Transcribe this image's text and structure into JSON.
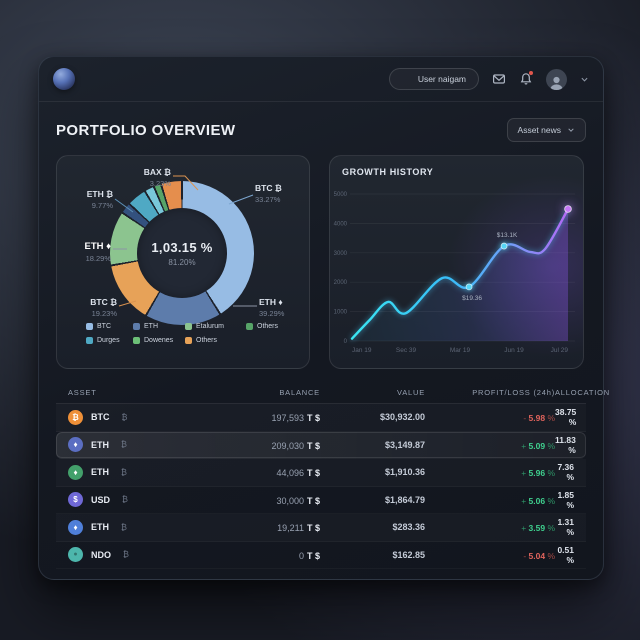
{
  "topbar": {
    "user_button_label": "User naigam"
  },
  "header": {
    "title": "PORTFOLIO OVERVIEW",
    "asset_news_button": "Asset news"
  },
  "allocation_card": {
    "center_value": "1,03.15 %",
    "center_subvalue": "81.20%",
    "callouts": [
      {
        "name": "BAX ₿",
        "pct": "3.23%"
      },
      {
        "name": "ETH ₿",
        "pct": "9.77%"
      },
      {
        "name": "ETH ♦",
        "pct": "18.29%"
      },
      {
        "name": "BTC ₿",
        "pct": "19.23%"
      },
      {
        "name": "BTC ₿",
        "pct": "33.27%"
      },
      {
        "name": "ETH ♦",
        "pct": "39.29%"
      }
    ],
    "legend": [
      {
        "label": "BTC",
        "color": "#97bce4"
      },
      {
        "label": "ETH",
        "color": "#5d7cab"
      },
      {
        "label": "Etalurum",
        "color": "#8cc48f"
      },
      {
        "label": "Others",
        "color": "#57a468"
      },
      {
        "label": "Durges",
        "color": "#4fa9c4"
      },
      {
        "label": "Dowenes",
        "color": "#6cbf77"
      },
      {
        "label": "Others",
        "color": "#e7a258"
      }
    ],
    "chart_data": {
      "type": "pie",
      "segments": [
        {
          "label": "BTC",
          "pct": 33.27,
          "color": "#97bce4",
          "deg": 148
        },
        {
          "label": "ETH",
          "pct": 39.29,
          "color": "#5d7cab",
          "deg": 62
        },
        {
          "label": "BTC",
          "pct": 19.23,
          "color": "#e7a258",
          "deg": 50
        },
        {
          "label": "ETH",
          "pct": 18.29,
          "color": "#8cc48f",
          "deg": 44
        },
        {
          "label": "ETH",
          "pct": null,
          "color": "#33517e",
          "deg": 9
        },
        {
          "label": "ETH",
          "pct": 9.77,
          "color": "#4fa9c4",
          "deg": 16
        },
        {
          "label": "Durges",
          "pct": null,
          "color": "#79c7da",
          "deg": 8
        },
        {
          "label": "Others",
          "pct": null,
          "color": "#57a468",
          "deg": 6
        },
        {
          "label": "BAX",
          "pct": 3.23,
          "color": "#e58e4d",
          "deg": 17
        }
      ]
    }
  },
  "growth_card": {
    "title": "GROWTH HISTORY",
    "chart_data": {
      "type": "line",
      "x_labels": [
        "Jan 19",
        "Sec 39",
        "Mar 19",
        "Jun 19",
        "Jul 29"
      ],
      "y_ticks": [
        0,
        1000,
        2000,
        3000,
        4000,
        5000
      ],
      "ylim": [
        0,
        5000
      ],
      "points": [
        {
          "f": 0.0,
          "v": 80
        },
        {
          "f": 0.08,
          "v": 700
        },
        {
          "f": 0.167,
          "v": 1330
        },
        {
          "f": 0.25,
          "v": 950
        },
        {
          "f": 0.417,
          "v": 2140
        },
        {
          "f": 0.542,
          "v": 1840,
          "marker": true,
          "label": "$19.36",
          "label_pos": "below"
        },
        {
          "f": 0.704,
          "v": 3230,
          "marker": true,
          "label": "$13.1K",
          "label_pos": "above"
        },
        {
          "f": 0.824,
          "v": 3030
        },
        {
          "f": 0.894,
          "v": 3130
        },
        {
          "f": 1.0,
          "v": 4490,
          "end": true
        }
      ]
    }
  },
  "table": {
    "headers": [
      "ASSET",
      "BALANCE",
      "VALUE",
      "PROFIT/LOSS (24h)",
      "ALLOCATION"
    ],
    "rows": [
      {
        "asset": "BTC",
        "suffix": "₿",
        "icon_color": "#ef9038",
        "icon_glyph": "₿",
        "balance": "197,593",
        "balance_suffix": "T $",
        "value": "$30,932.00",
        "profit_sign": "-",
        "profit_value": "5.98",
        "profit_dir": "down",
        "allocation": "38.75 %"
      },
      {
        "asset": "ETH",
        "suffix": "₿",
        "icon_color": "#5b6ec2",
        "icon_glyph": "♦",
        "balance": "209,030",
        "balance_suffix": "T $",
        "value": "$3,149.87",
        "profit_sign": "+",
        "profit_value": "5.09",
        "profit_dir": "up",
        "allocation": "11.83 %",
        "highlight": true
      },
      {
        "asset": "ETH",
        "suffix": "₿",
        "icon_color": "#43a06b",
        "icon_glyph": "♦",
        "balance": "44,096",
        "balance_suffix": "T $",
        "value": "$1,910.36",
        "profit_sign": "+",
        "profit_value": "5.96",
        "profit_dir": "up",
        "allocation": "7.36 %"
      },
      {
        "asset": "USD",
        "suffix": "₿",
        "icon_color": "#6f68d6",
        "icon_glyph": "$",
        "balance": "30,000",
        "balance_suffix": "T $",
        "value": "$1,864.79",
        "profit_sign": "+",
        "profit_value": "5.06",
        "profit_dir": "up",
        "allocation": "1.85 %"
      },
      {
        "asset": "ETH",
        "suffix": "₿",
        "icon_color": "#4f7fd9",
        "icon_glyph": "♦",
        "balance": "19,211",
        "balance_suffix": "T $",
        "value": "$283.36",
        "profit_sign": "+",
        "profit_value": "3.59",
        "profit_dir": "up",
        "allocation": "1.31 %"
      },
      {
        "asset": "NDO",
        "suffix": "₿",
        "icon_color": "#4db6ac",
        "icon_glyph": "●",
        "balance": "0",
        "balance_suffix": "T $",
        "value": "$162.85",
        "profit_sign": "-",
        "profit_value": "5.04",
        "profit_dir": "down",
        "allocation": "0.51 %"
      }
    ]
  }
}
